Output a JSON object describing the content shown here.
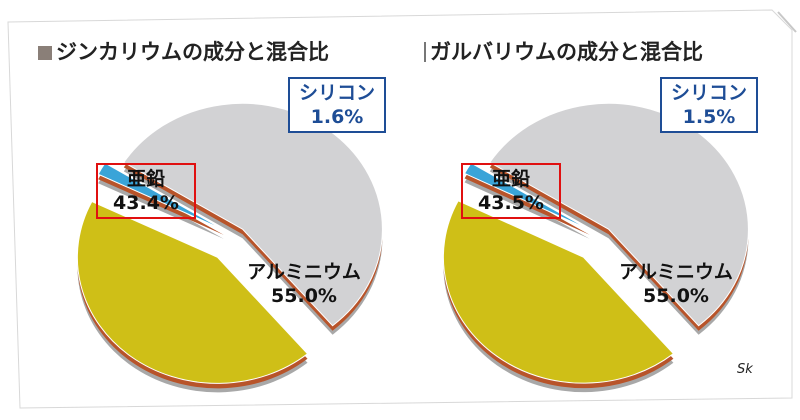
{
  "chart_data": [
    {
      "type": "pie",
      "title": "ジンカリウムの成分と混合比",
      "slices": [
        {
          "label": "アルミニウム",
          "value": 55.0,
          "value_label": "55.0%",
          "color": "#d2d2d4"
        },
        {
          "label": "亜鉛",
          "value": 43.4,
          "value_label": "43.4%",
          "color": "#cfbf17"
        },
        {
          "label": "シリコン",
          "value": 1.6,
          "value_label": "1.6%",
          "color": "#3aa4d8"
        }
      ]
    },
    {
      "type": "pie",
      "title": "ガルバリウムの成分と混合比",
      "slices": [
        {
          "label": "アルミニウム",
          "value": 55.0,
          "value_label": "55.0%",
          "color": "#d2d2d4"
        },
        {
          "label": "亜鉛",
          "value": 43.5,
          "value_label": "43.5%",
          "color": "#cfbf17"
        },
        {
          "label": "シリコン",
          "value": 1.5,
          "value_label": "1.5%",
          "color": "#3aa4d8"
        }
      ]
    }
  ],
  "credit": "Sk",
  "colors": {
    "edge": "#b8542a",
    "silicon_border": "#1e4d96",
    "zinc_border": "#e01010"
  }
}
